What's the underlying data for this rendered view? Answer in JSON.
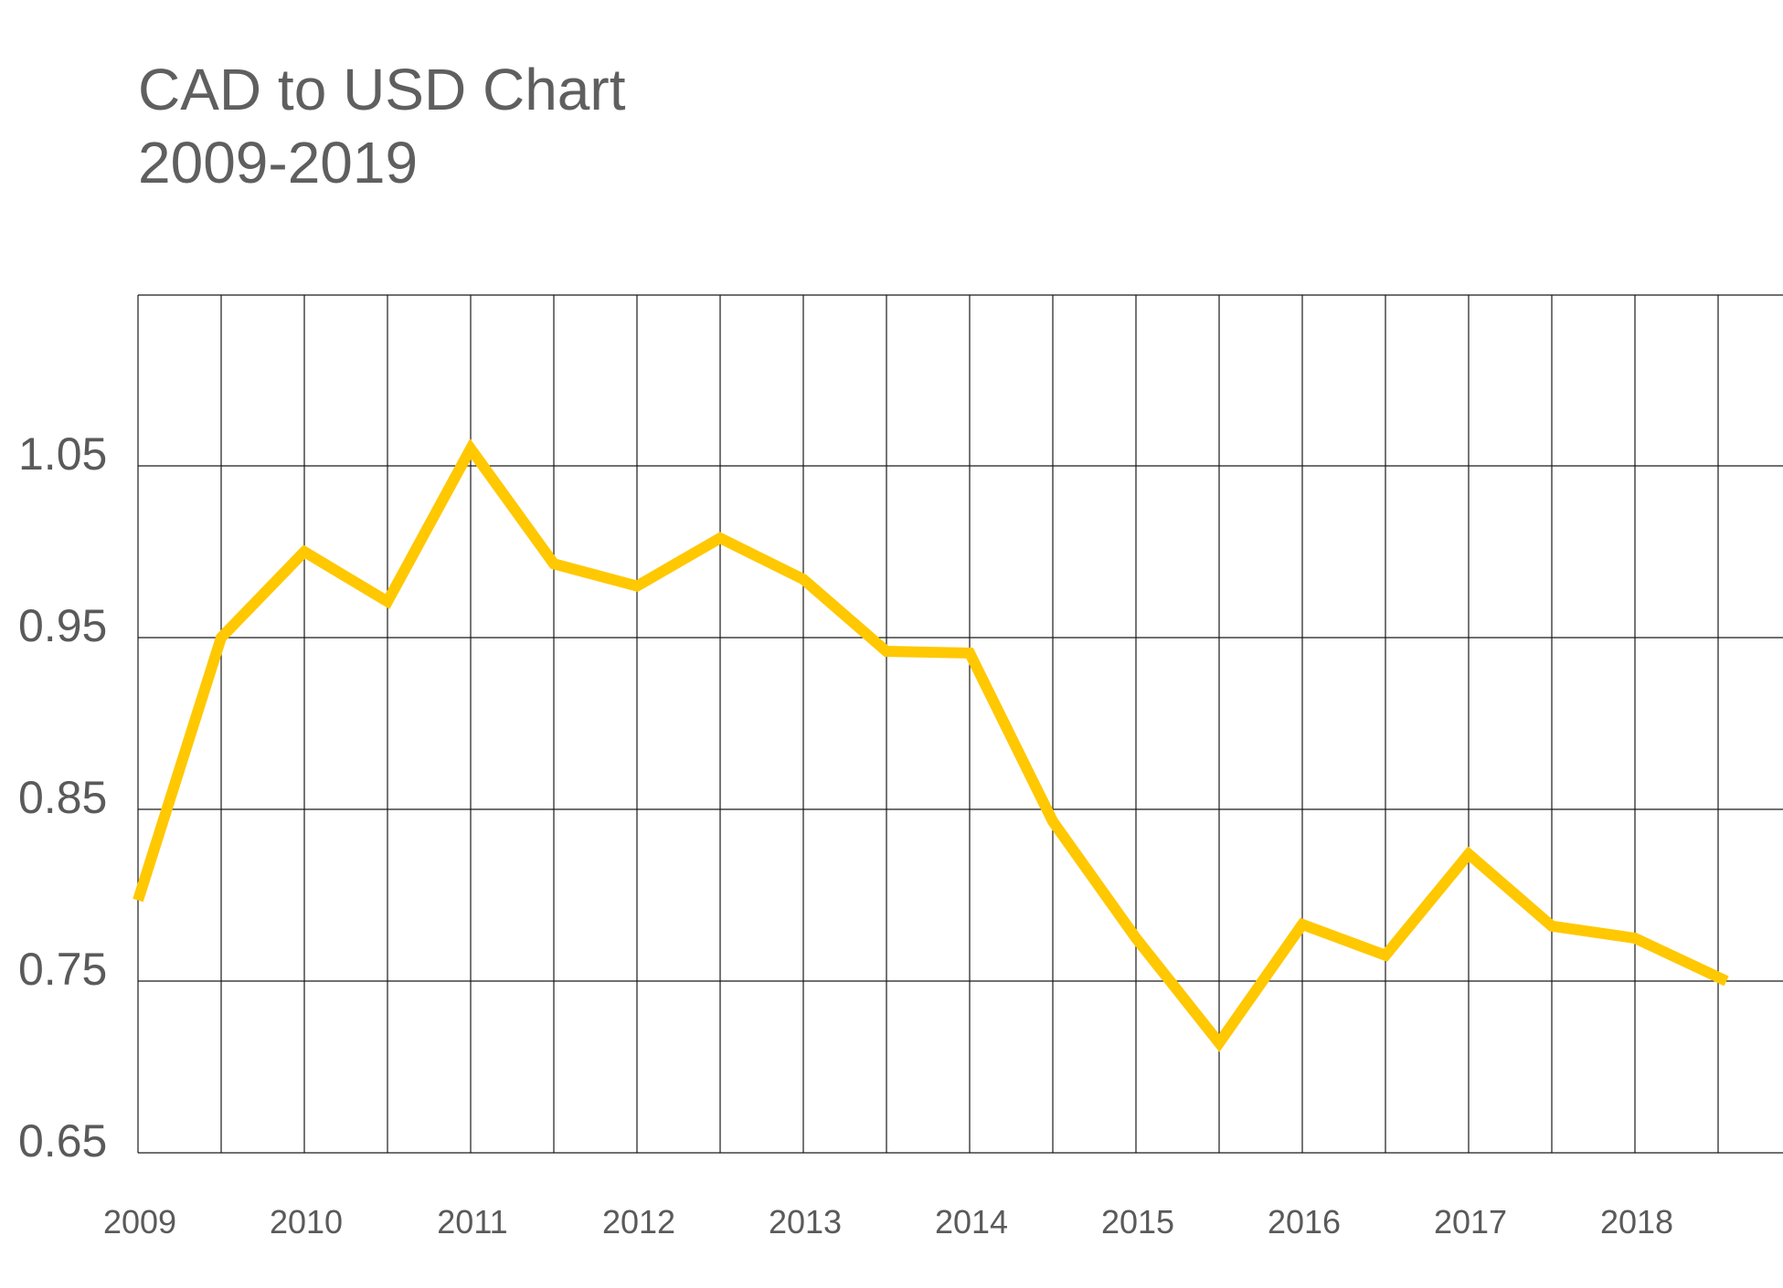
{
  "title_line1": "CAD to USD Chart",
  "title_line2": "2009-2019",
  "colors": {
    "line": "#FFC800",
    "grid": "#1a1a1a",
    "text": "#5f5f5f"
  },
  "chart_data": {
    "type": "line",
    "title": "CAD to USD Chart 2009-2019",
    "xlabel": "",
    "ylabel": "",
    "grid": true,
    "legend": "none",
    "x_ticks": [
      "2009",
      "2010",
      "2011",
      "2012",
      "2013",
      "2014",
      "2015",
      "2016",
      "2017",
      "2018"
    ],
    "y_ticks": [
      "1.05",
      "0.95",
      "0.85",
      "0.75",
      "0.65"
    ],
    "ylim": [
      0.65,
      1.15
    ],
    "xlim": [
      2009,
      2019
    ],
    "series": [
      {
        "x": [
          2009.0,
          2009.5,
          2010.0,
          2010.5,
          2011.0,
          2011.5,
          2012.0,
          2012.5,
          2013.0,
          2013.5,
          2014.0,
          2014.5,
          2015.0,
          2015.5,
          2016.0,
          2016.5,
          2017.0,
          2017.5,
          2018.0,
          2018.55
        ],
        "y": [
          0.797,
          0.95,
          1.0,
          0.971,
          1.06,
          0.993,
          0.98,
          1.008,
          0.984,
          0.942,
          0.941,
          0.843,
          0.775,
          0.714,
          0.783,
          0.765,
          0.824,
          0.782,
          0.775,
          0.75
        ]
      }
    ]
  }
}
